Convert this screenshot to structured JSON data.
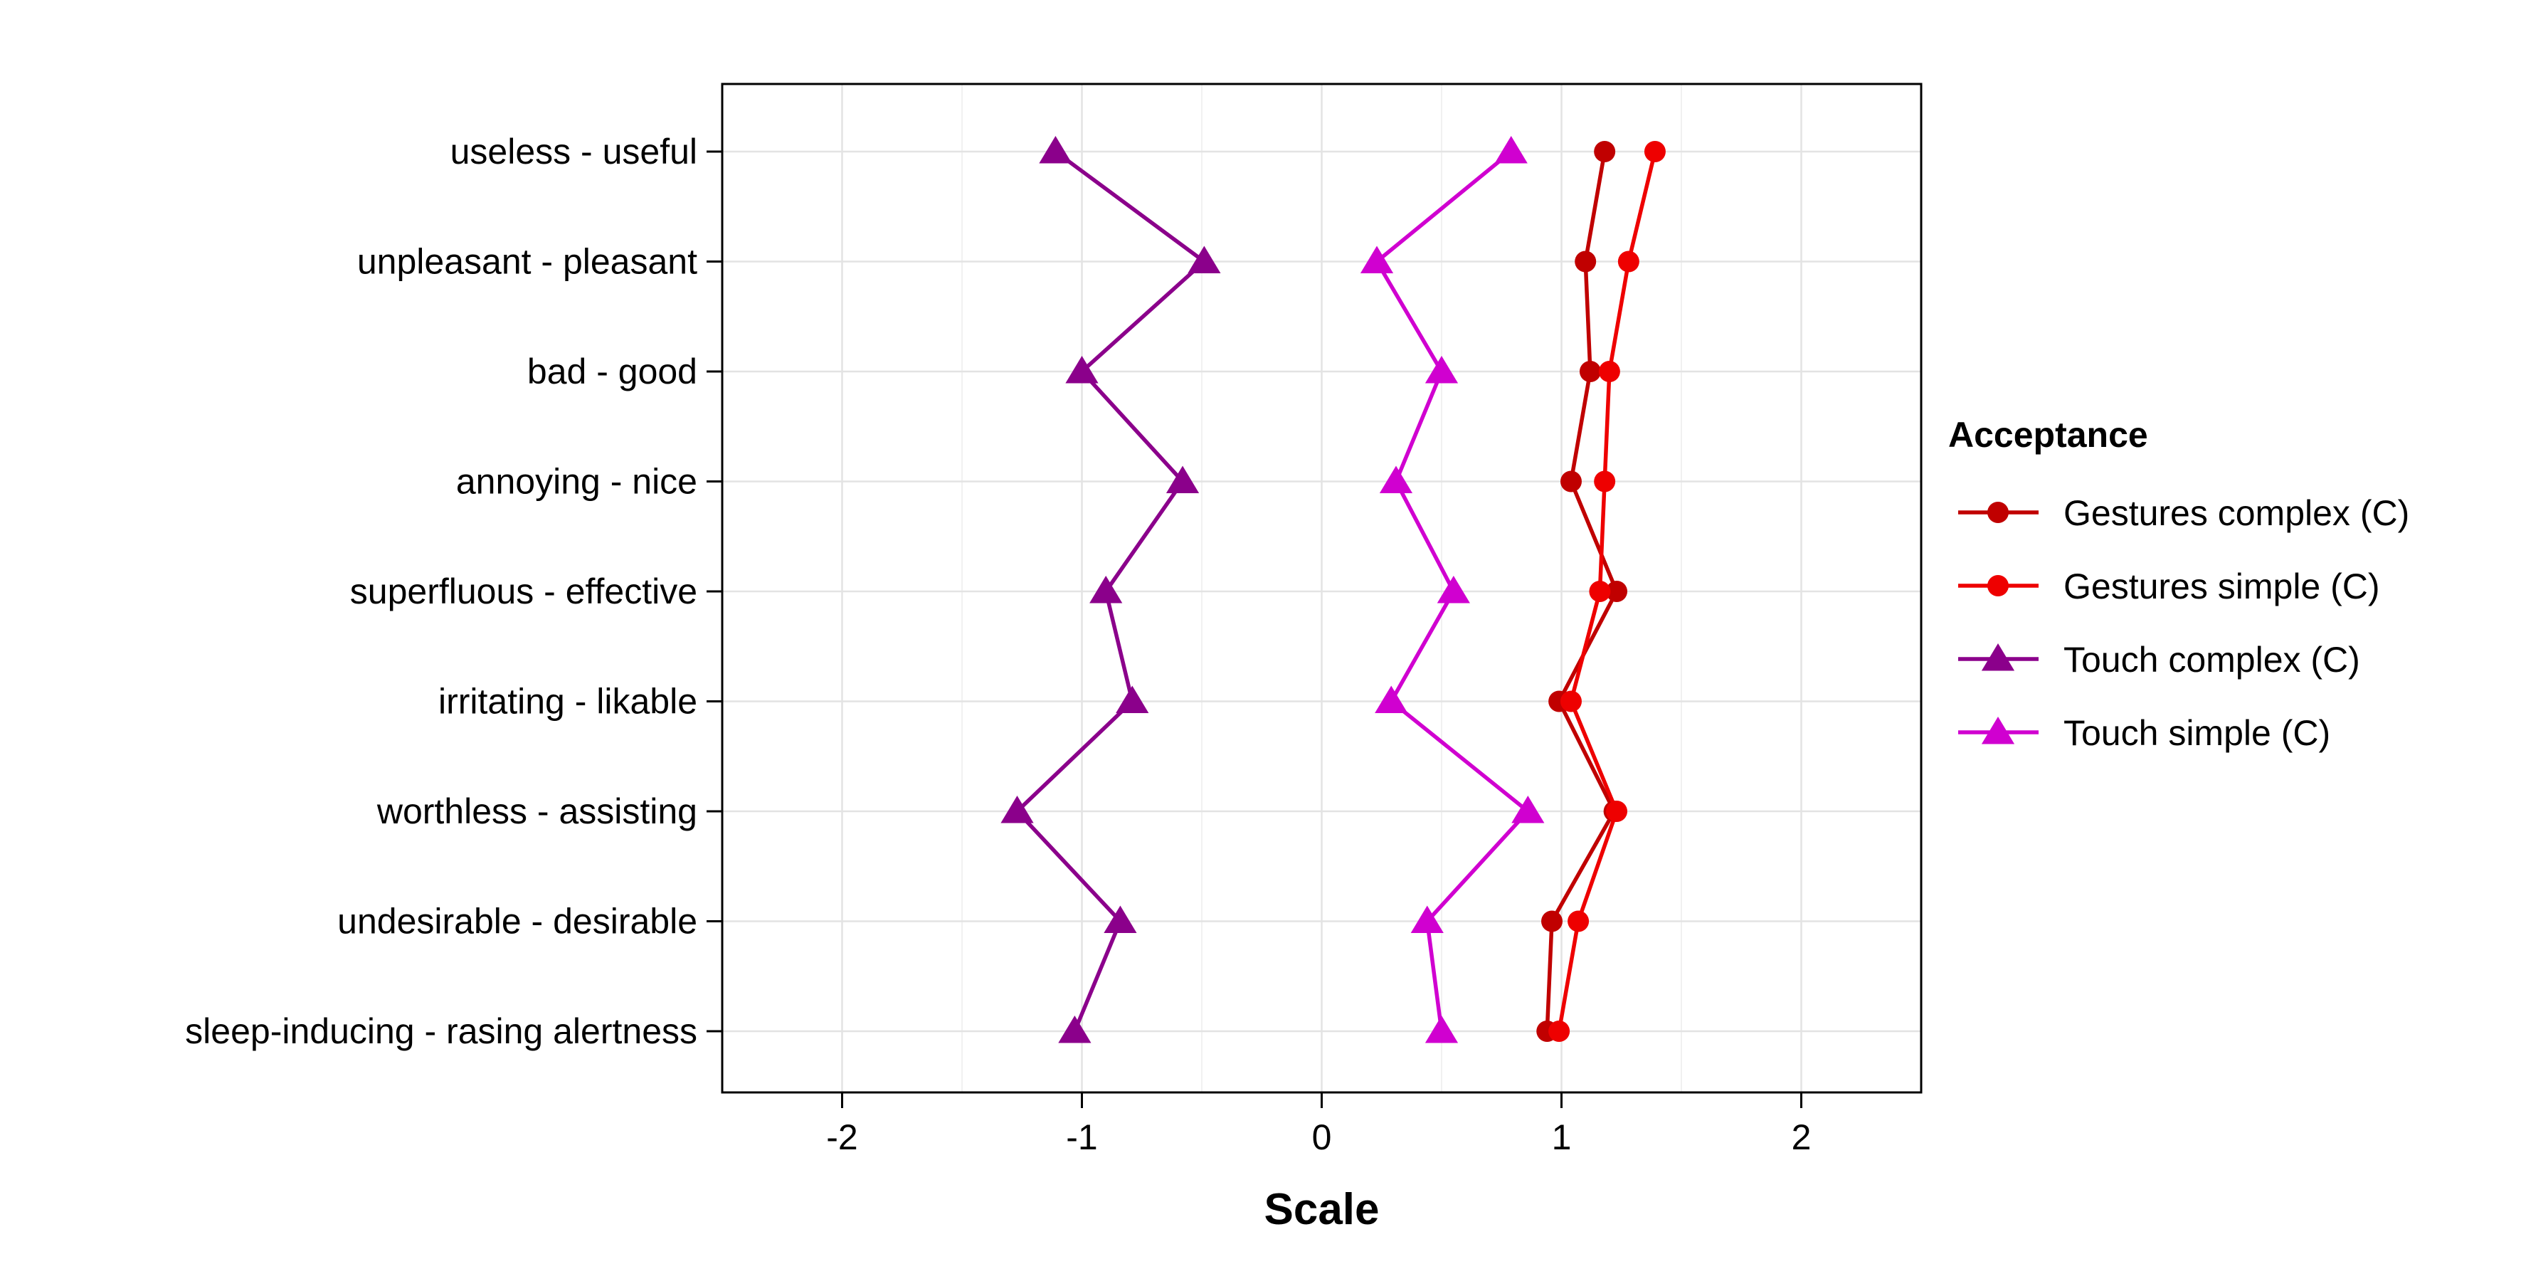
{
  "chart_data": {
    "type": "line",
    "xlabel": "Scale",
    "ylabel": "",
    "xlim": [
      -2.5,
      2.5
    ],
    "x_ticks": [
      -2,
      -1,
      0,
      1,
      2
    ],
    "x_tick_labels": [
      "-2",
      "-1",
      "0",
      "1",
      "2"
    ],
    "grid": true,
    "categories": [
      "useless - useful",
      "unpleasant - pleasant",
      "bad - good",
      "annoying - nice",
      "superfluous - effective",
      "irritating - likable",
      "worthless - assisting",
      "undesirable - desirable",
      "sleep-inducing - rasing alertness"
    ],
    "legend": {
      "title": "Acceptance",
      "position": "right"
    },
    "series": [
      {
        "name": "Gestures complex (C)",
        "color": "#C00000",
        "marker": "circle",
        "values": [
          1.18,
          1.1,
          1.12,
          1.04,
          1.23,
          0.99,
          1.22,
          0.96,
          0.94
        ]
      },
      {
        "name": "Gestures simple (C)",
        "color": "#EE0000",
        "marker": "circle",
        "values": [
          1.39,
          1.28,
          1.2,
          1.18,
          1.16,
          1.04,
          1.23,
          1.07,
          0.99
        ]
      },
      {
        "name": "Touch complex (C)",
        "color": "#8B008B",
        "marker": "triangle",
        "values": [
          -1.11,
          -0.49,
          -1.0,
          -0.58,
          -0.9,
          -0.79,
          -1.27,
          -0.84,
          -1.03
        ]
      },
      {
        "name": "Touch simple (C)",
        "color": "#D000D0",
        "marker": "triangle",
        "values": [
          0.79,
          0.23,
          0.5,
          0.31,
          0.55,
          0.29,
          0.86,
          0.44,
          0.5
        ]
      }
    ]
  }
}
